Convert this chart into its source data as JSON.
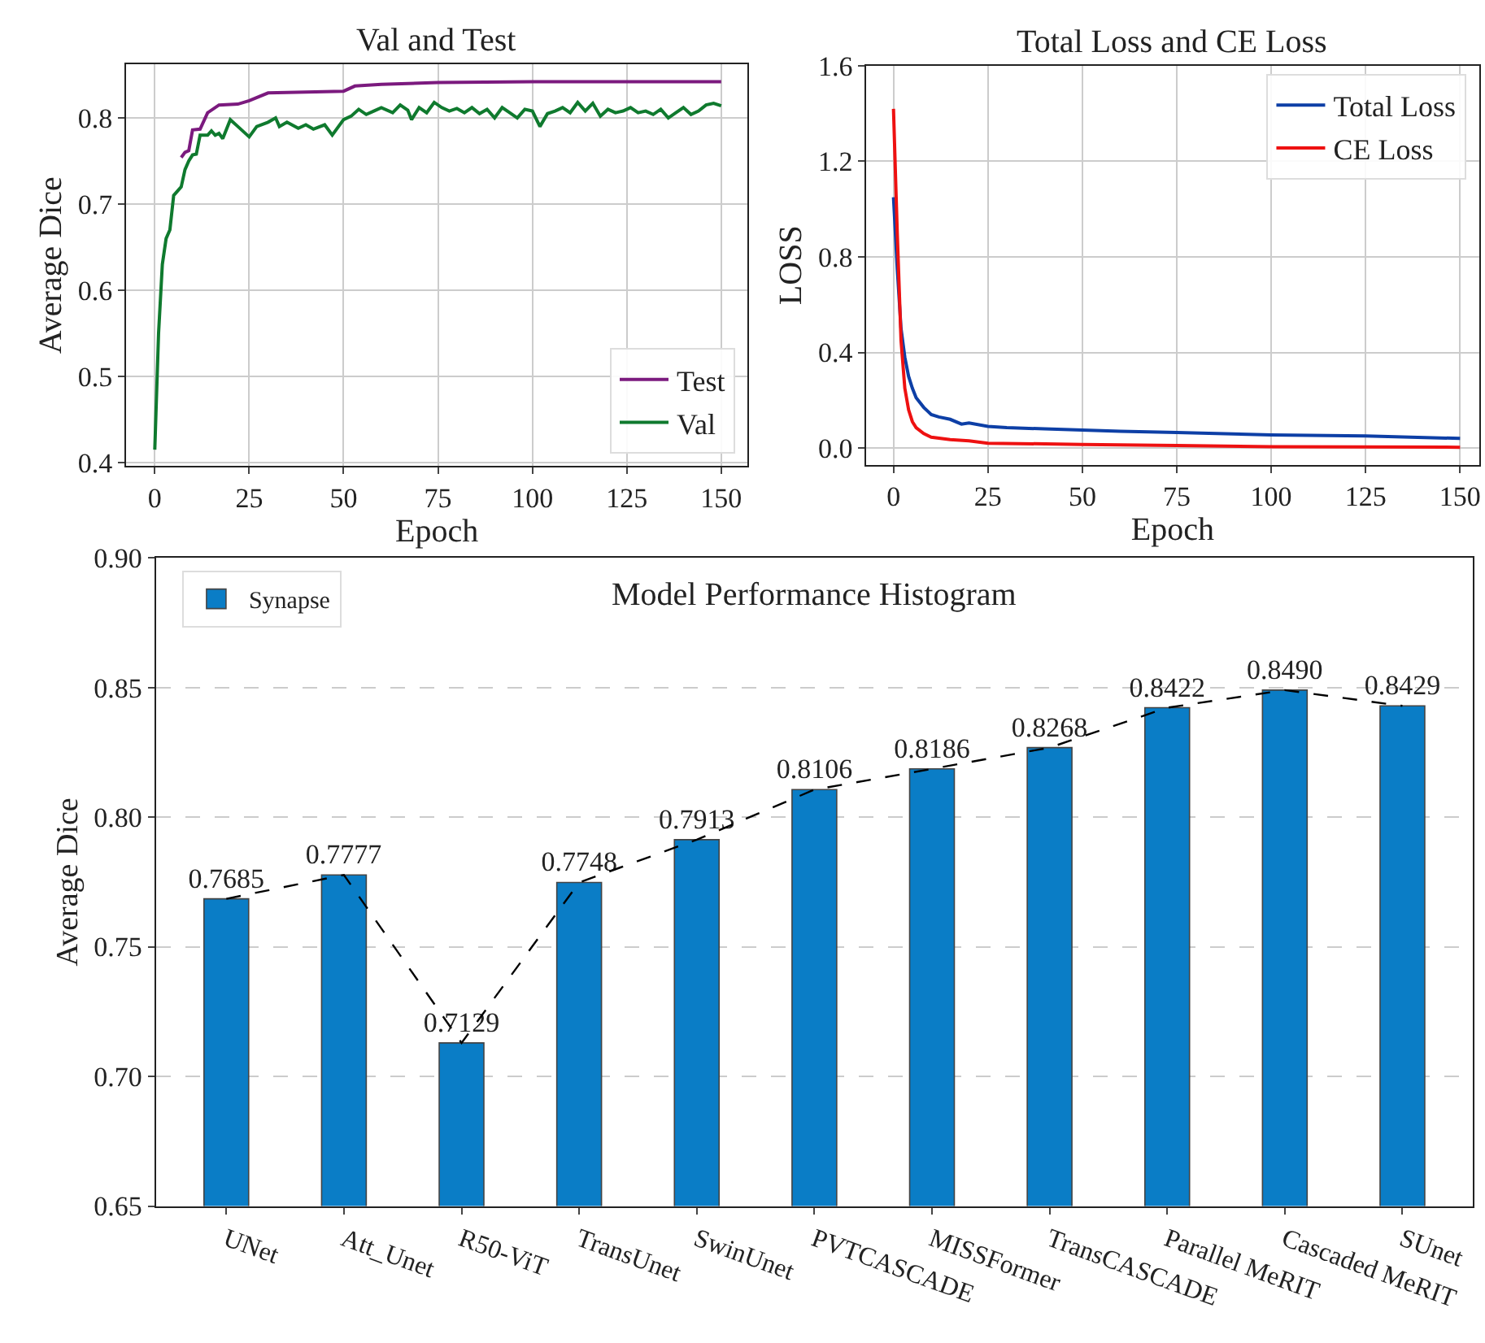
{
  "chart_data": [
    {
      "type": "line",
      "title": "Val and Test",
      "xlabel": "Epoch",
      "ylabel": "Average Dice",
      "xlim": [
        -7.6,
        157
      ],
      "ylim": [
        0.396,
        0.862
      ],
      "xticks": [
        0,
        25,
        50,
        75,
        100,
        125,
        150
      ],
      "yticks": [
        0.4,
        0.5,
        0.6,
        0.7,
        0.8
      ],
      "grid": true,
      "legend": "bottom right",
      "series": [
        {
          "name": "Test",
          "color": "#7b1a7e",
          "x": [
            7,
            8,
            9,
            10,
            12,
            14,
            17,
            22,
            25,
            30,
            50,
            53,
            60,
            75,
            100,
            150
          ],
          "values": [
            0.754,
            0.76,
            0.762,
            0.786,
            0.787,
            0.806,
            0.815,
            0.816,
            0.82,
            0.829,
            0.831,
            0.837,
            0.839,
            0.841,
            0.842,
            0.842
          ]
        },
        {
          "name": "Val",
          "color": "#0f7a2e",
          "x": [
            0,
            1,
            2,
            3,
            4,
            5,
            6,
            7,
            8,
            9,
            10,
            11,
            12,
            14,
            15,
            16,
            17,
            18,
            20,
            22,
            25,
            27,
            30,
            32,
            33,
            35,
            38,
            40,
            42,
            45,
            47,
            50,
            52,
            54,
            56,
            58,
            60,
            63,
            65,
            67,
            68,
            70,
            72,
            74,
            76,
            78,
            80,
            82,
            84,
            86,
            88,
            90,
            92,
            94,
            96,
            98,
            100,
            102,
            104,
            106,
            108,
            110,
            112,
            114,
            116,
            118,
            120,
            122,
            124,
            126,
            128,
            130,
            132,
            134,
            136,
            138,
            140,
            142,
            144,
            146,
            148,
            150
          ],
          "values": [
            0.415,
            0.55,
            0.63,
            0.66,
            0.67,
            0.71,
            0.715,
            0.72,
            0.74,
            0.75,
            0.757,
            0.758,
            0.78,
            0.78,
            0.785,
            0.78,
            0.782,
            0.776,
            0.798,
            0.79,
            0.778,
            0.79,
            0.795,
            0.8,
            0.79,
            0.795,
            0.788,
            0.792,
            0.787,
            0.792,
            0.78,
            0.798,
            0.802,
            0.81,
            0.804,
            0.808,
            0.812,
            0.806,
            0.815,
            0.809,
            0.798,
            0.812,
            0.806,
            0.818,
            0.812,
            0.808,
            0.811,
            0.806,
            0.812,
            0.805,
            0.81,
            0.8,
            0.812,
            0.806,
            0.8,
            0.81,
            0.808,
            0.79,
            0.805,
            0.808,
            0.812,
            0.806,
            0.818,
            0.808,
            0.817,
            0.802,
            0.81,
            0.806,
            0.808,
            0.812,
            0.806,
            0.808,
            0.804,
            0.81,
            0.8,
            0.806,
            0.812,
            0.804,
            0.808,
            0.815,
            0.817,
            0.814
          ]
        }
      ]
    },
    {
      "type": "line",
      "title": "Total Loss and CE Loss",
      "xlabel": "Epoch",
      "ylabel": "LOSS",
      "xlim": [
        -7.2,
        155
      ],
      "ylim": [
        -0.07,
        1.6
      ],
      "xticks": [
        0,
        25,
        50,
        75,
        100,
        125,
        150
      ],
      "yticks": [
        {
          "value": 0,
          "label": "0.0"
        },
        0.4,
        0.8,
        1.2,
        1.6
      ],
      "grid": true,
      "legend": "top right",
      "series": [
        {
          "name": "Total Loss",
          "color": "#0d3fa6",
          "x": [
            0,
            1,
            2,
            3,
            4,
            5,
            6,
            8,
            10,
            12,
            15,
            18,
            20,
            25,
            30,
            40,
            50,
            60,
            75,
            100,
            125,
            150
          ],
          "values": [
            1.05,
            0.75,
            0.5,
            0.38,
            0.3,
            0.25,
            0.21,
            0.17,
            0.14,
            0.13,
            0.12,
            0.1,
            0.105,
            0.09,
            0.085,
            0.08,
            0.075,
            0.07,
            0.065,
            0.055,
            0.05,
            0.04
          ]
        },
        {
          "name": "CE Loss",
          "color": "#ee1111",
          "x": [
            0,
            1,
            2,
            3,
            4,
            5,
            6,
            8,
            10,
            15,
            20,
            25,
            50,
            75,
            100,
            150
          ],
          "values": [
            1.42,
            0.9,
            0.45,
            0.25,
            0.16,
            0.11,
            0.085,
            0.06,
            0.045,
            0.035,
            0.03,
            0.02,
            0.015,
            0.01,
            0.005,
            0.003
          ]
        }
      ]
    },
    {
      "type": "bar",
      "title": "Model Performance Histogram",
      "ylabel": "Average Dice",
      "ylim": [
        0.65,
        0.9
      ],
      "yticks": [
        {
          "value": 0.65,
          "label": "0.65"
        },
        {
          "value": 0.7,
          "label": "0.70"
        },
        {
          "value": 0.75,
          "label": "0.75"
        },
        {
          "value": 0.8,
          "label": "0.80"
        },
        {
          "value": 0.85,
          "label": "0.85"
        },
        {
          "value": 0.9,
          "label": "0.90"
        }
      ],
      "grid": "y",
      "legend": "top left",
      "categories": [
        "UNet",
        "Att_Unet",
        "R50-ViT",
        "TransUnet",
        "SwinUnet",
        "PVTCASCADE",
        "MISSFormer",
        "TransCASCADE",
        "Parallel MeRIT",
        "Cascaded MeRIT",
        "SUnet"
      ],
      "series": [
        {
          "name": "Synapse",
          "color": "#0a7dc6",
          "values": [
            0.7685,
            0.7777,
            0.7129,
            0.7748,
            0.7913,
            0.8106,
            0.8186,
            0.8268,
            0.8422,
            0.849,
            0.8429
          ],
          "value_labels": [
            "0.7685",
            "0.7777",
            "0.7129",
            "0.7748",
            "0.7913",
            "0.8106",
            "0.8186",
            "0.8268",
            "0.8422",
            "0.8490",
            "0.8429"
          ]
        },
        {
          "type": "line",
          "color": "#000000",
          "line_style": "dashed",
          "values": [
            0.7685,
            0.7777,
            0.7129,
            0.7748,
            0.7913,
            0.8106,
            0.8186,
            0.8268,
            0.8422,
            0.849,
            0.8429
          ]
        }
      ]
    }
  ]
}
